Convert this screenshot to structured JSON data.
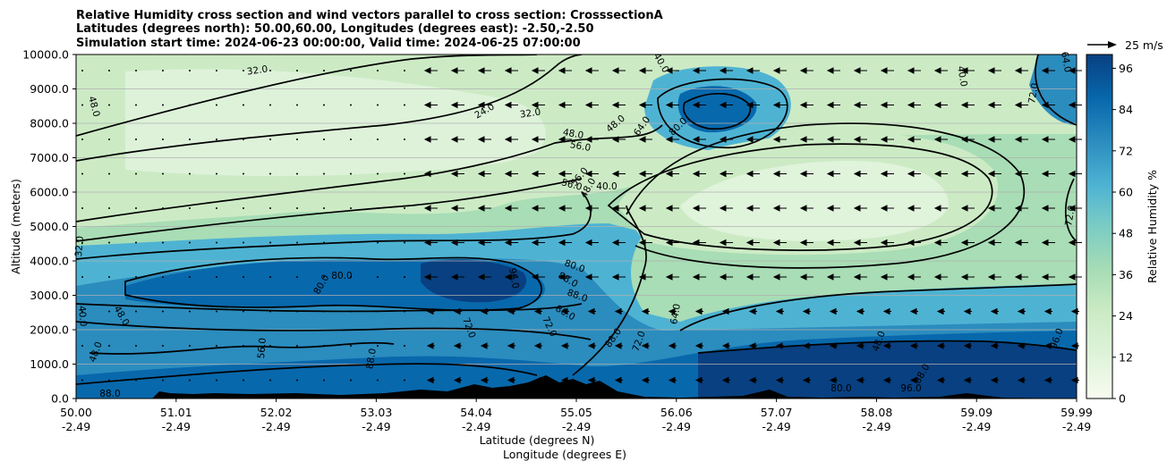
{
  "title_lines": [
    "Relative Humidity cross section and wind vectors parallel to cross section: CrosssectionA",
    "Latitudes (degrees north): 50.00,60.00, Longitudes (degrees east): -2.50,-2.50",
    "Simulation start time: 2024-06-23 00:00:00, Valid time: 2024-06-25 07:00:00"
  ],
  "chart_data": {
    "type": "heatmap",
    "xlabel_lines": [
      "Latitude (degrees N)",
      "Longitude (degrees E)"
    ],
    "ylabel": "Altitude (meters)",
    "x_range": [
      50.0,
      59.99
    ],
    "ylim": [
      0,
      10000
    ],
    "x_ticks": [
      {
        "lat": "50.00",
        "lon": "-2.49"
      },
      {
        "lat": "51.01",
        "lon": "-2.49"
      },
      {
        "lat": "52.02",
        "lon": "-2.49"
      },
      {
        "lat": "53.03",
        "lon": "-2.49"
      },
      {
        "lat": "54.04",
        "lon": "-2.49"
      },
      {
        "lat": "55.05",
        "lon": "-2.49"
      },
      {
        "lat": "56.06",
        "lon": "-2.49"
      },
      {
        "lat": "57.07",
        "lon": "-2.49"
      },
      {
        "lat": "58.08",
        "lon": "-2.49"
      },
      {
        "lat": "59.09",
        "lon": "-2.49"
      },
      {
        "lat": "59.99",
        "lon": "-2.49"
      }
    ],
    "y_ticks": [
      "0.0",
      "1000.0",
      "2000.0",
      "3000.0",
      "4000.0",
      "5000.0",
      "6000.0",
      "7000.0",
      "8000.0",
      "9000.0",
      "10000.0"
    ],
    "y_tick_values": [
      0,
      1000,
      2000,
      3000,
      4000,
      5000,
      6000,
      7000,
      8000,
      9000,
      10000
    ],
    "grid": "horizontal",
    "colorbar": {
      "label": "Relative Humidity %",
      "range": [
        0,
        100
      ],
      "ticks": [
        "0",
        "12",
        "24",
        "36",
        "48",
        "60",
        "72",
        "84",
        "96"
      ],
      "tick_values": [
        0,
        12,
        24,
        36,
        48,
        60,
        72,
        84,
        96
      ],
      "colormap": "GnBu",
      "colors": [
        "#f7fcf0",
        "#e0f3db",
        "#ccebc5",
        "#a8ddb5",
        "#7bccc4",
        "#4eb3d3",
        "#2b8cbe",
        "#0868ac",
        "#084081"
      ]
    },
    "quiver_key": "25 m/s",
    "contour_labels": [
      "32.0",
      "48.0",
      "24.0",
      "32.0",
      "48.0",
      "48.0",
      "64.0",
      "80.0",
      "40.0",
      "40.0",
      "56.0",
      "56.0",
      "56.0",
      "48.0",
      "40.0",
      "32.0",
      "80.0",
      "80.0",
      "96.0",
      "80.0",
      "88.0",
      "88.0",
      "80.0",
      "40.0",
      "48.0",
      "72.0",
      "48.0",
      "56.0",
      "72.0",
      "88.0",
      "72.0",
      "64.0",
      "48.0",
      "96.0",
      "72.0",
      "64.0",
      "72.0",
      "88.0",
      "88.0",
      "96.0",
      "80.0",
      "88.0"
    ]
  }
}
